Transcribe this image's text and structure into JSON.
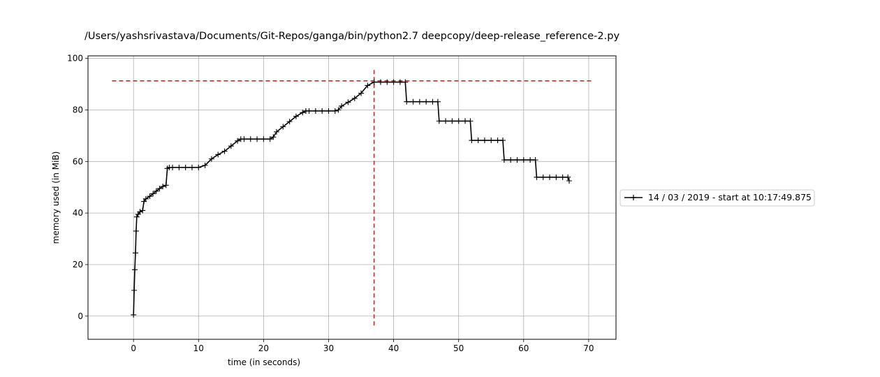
{
  "chart_data": {
    "type": "line",
    "title": "/Users/yashsrivastava/Documents/Git-Repos/ganga/bin/python2.7 deepcopy/deep-release_reference-2.py",
    "xlabel": "time (in seconds)",
    "ylabel": "memory used (in MiB)",
    "xlim": [
      -7,
      74.2
    ],
    "ylim": [
      -9,
      101
    ],
    "xticks": [
      0,
      10,
      20,
      30,
      40,
      50,
      60,
      70
    ],
    "yticks": [
      0,
      20,
      40,
      60,
      80,
      100
    ],
    "grid": true,
    "legend_position": "right",
    "colors": {
      "series": "#000000",
      "peak_lines": "#d62728",
      "grid": "#b0b0b0"
    },
    "series": [
      {
        "name": "14 / 03 / 2019 - start at 10:17:49.875",
        "marker": "+",
        "x": [
          0,
          0.1,
          0.2,
          0.3,
          0.4,
          0.5,
          0.7,
          1.0,
          1.4,
          1.6,
          1.9,
          2.5,
          3.0,
          3.5,
          4.0,
          4.5,
          5.0,
          5.2,
          5.5,
          6.0,
          7.0,
          8.0,
          9.0,
          10.0,
          11.0,
          12.0,
          13.0,
          14.0,
          15.0,
          16.0,
          16.5,
          17.0,
          18.0,
          19.0,
          20.0,
          21.0,
          21.5,
          22.0,
          23.0,
          24.0,
          25.0,
          26.0,
          26.5,
          27.0,
          28.0,
          29.0,
          30.0,
          31.0,
          31.5,
          32.0,
          33.0,
          34.0,
          35.0,
          36.0,
          37.0,
          38.0,
          39.0,
          40.0,
          41.0,
          41.8,
          42.0,
          43.0,
          44.0,
          45.0,
          46.0,
          46.8,
          47.0,
          48.0,
          49.0,
          50.0,
          51.0,
          51.8,
          52.0,
          53.0,
          54.0,
          55.0,
          56.0,
          56.8,
          57.0,
          58.0,
          59.0,
          60.0,
          61.0,
          61.8,
          62.0,
          63.0,
          64.0,
          65.0,
          66.0,
          66.8,
          67.0
        ],
        "y": [
          0.5,
          10,
          18,
          24.5,
          33,
          38.5,
          39.5,
          40.5,
          41,
          44.5,
          45.5,
          46.5,
          47.5,
          48.5,
          49.5,
          50.3,
          50.8,
          57.3,
          57.7,
          57.7,
          57.7,
          57.7,
          57.7,
          57.7,
          58.5,
          61,
          62.7,
          64,
          66,
          68,
          68.7,
          68.7,
          68.7,
          68.7,
          68.7,
          68.7,
          69.5,
          71.5,
          73.5,
          75.5,
          77.5,
          79,
          79.6,
          79.6,
          79.6,
          79.6,
          79.6,
          79.6,
          80,
          81.5,
          83,
          84.5,
          86.5,
          89.5,
          90.8,
          90.8,
          90.8,
          90.8,
          90.8,
          90.8,
          83.2,
          83.2,
          83.2,
          83.2,
          83.2,
          83.2,
          75.7,
          75.7,
          75.7,
          75.7,
          75.7,
          75.7,
          68.2,
          68.2,
          68.2,
          68.2,
          68.2,
          68.2,
          60.6,
          60.6,
          60.6,
          60.6,
          60.6,
          60.6,
          53.9,
          53.9,
          53.9,
          53.9,
          53.9,
          53.9,
          52.5
        ]
      }
    ],
    "peak_lines": {
      "x": 37,
      "y": 91.3
    }
  }
}
